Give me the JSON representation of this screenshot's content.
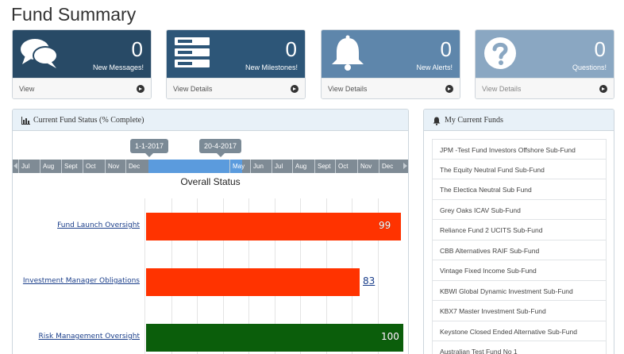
{
  "page_title": "Fund Summary",
  "cards": [
    {
      "count": "0",
      "label": "New Messages!",
      "footer": "View",
      "icon": "chat-icon",
      "color": "#284a66"
    },
    {
      "count": "0",
      "label": "New Milestones!",
      "footer": "View Details",
      "icon": "server-icon",
      "color": "#2d5678"
    },
    {
      "count": "0",
      "label": "New Alerts!",
      "footer": "View Details",
      "icon": "bell-icon",
      "color": "#5e86ab"
    },
    {
      "count": "0",
      "label": "Questions!",
      "footer": "View Details",
      "icon": "question-icon",
      "color": "#8aa7c2"
    }
  ],
  "status_panel": {
    "title": "Current Fund Status (% Complete)",
    "timeline": {
      "start_label": "1-1-2017",
      "end_label": "20-4-2017",
      "months_left": [
        "Jul",
        "Aug",
        "Sept",
        "Oct",
        "Nov",
        "Dec"
      ],
      "months_right": [
        "May",
        "Jun",
        "Jul",
        "Aug",
        "Sept",
        "Oct",
        "Nov",
        "Dec"
      ]
    },
    "chart_title": "Overall Status",
    "rows": [
      {
        "label": "Fund Launch Oversight",
        "value": 99,
        "value_text": "99",
        "color": "#ff3300"
      },
      {
        "label": "Investment Manager Obligations",
        "value": 83,
        "value_text": "83",
        "color": "#ff3300"
      },
      {
        "label": "Risk Management Oversight",
        "value": 100,
        "value_text": "100",
        "color": "#0b5e0b"
      }
    ]
  },
  "funds_panel": {
    "title": "My Current Funds",
    "items": [
      "JPM -Test Fund Investors Offshore Sub-Fund",
      "The Equity Neutral Fund Sub-Fund",
      "The Electica Neutral Sub Fund",
      "Grey Oaks ICAV Sub-Fund",
      "Reliance Fund 2 UCITS Sub-Fund",
      "CBB Alternatives RAIF Sub-Fund",
      "Vintage Fixed Income Sub-Fund",
      "KBWI Global Dynamic Investment Sub-Fund",
      "KBX7 Master Investment Sub-Fund",
      "Keystone Closed Ended Alternative Sub-Fund",
      "Australian Test Fund No 1"
    ]
  }
}
